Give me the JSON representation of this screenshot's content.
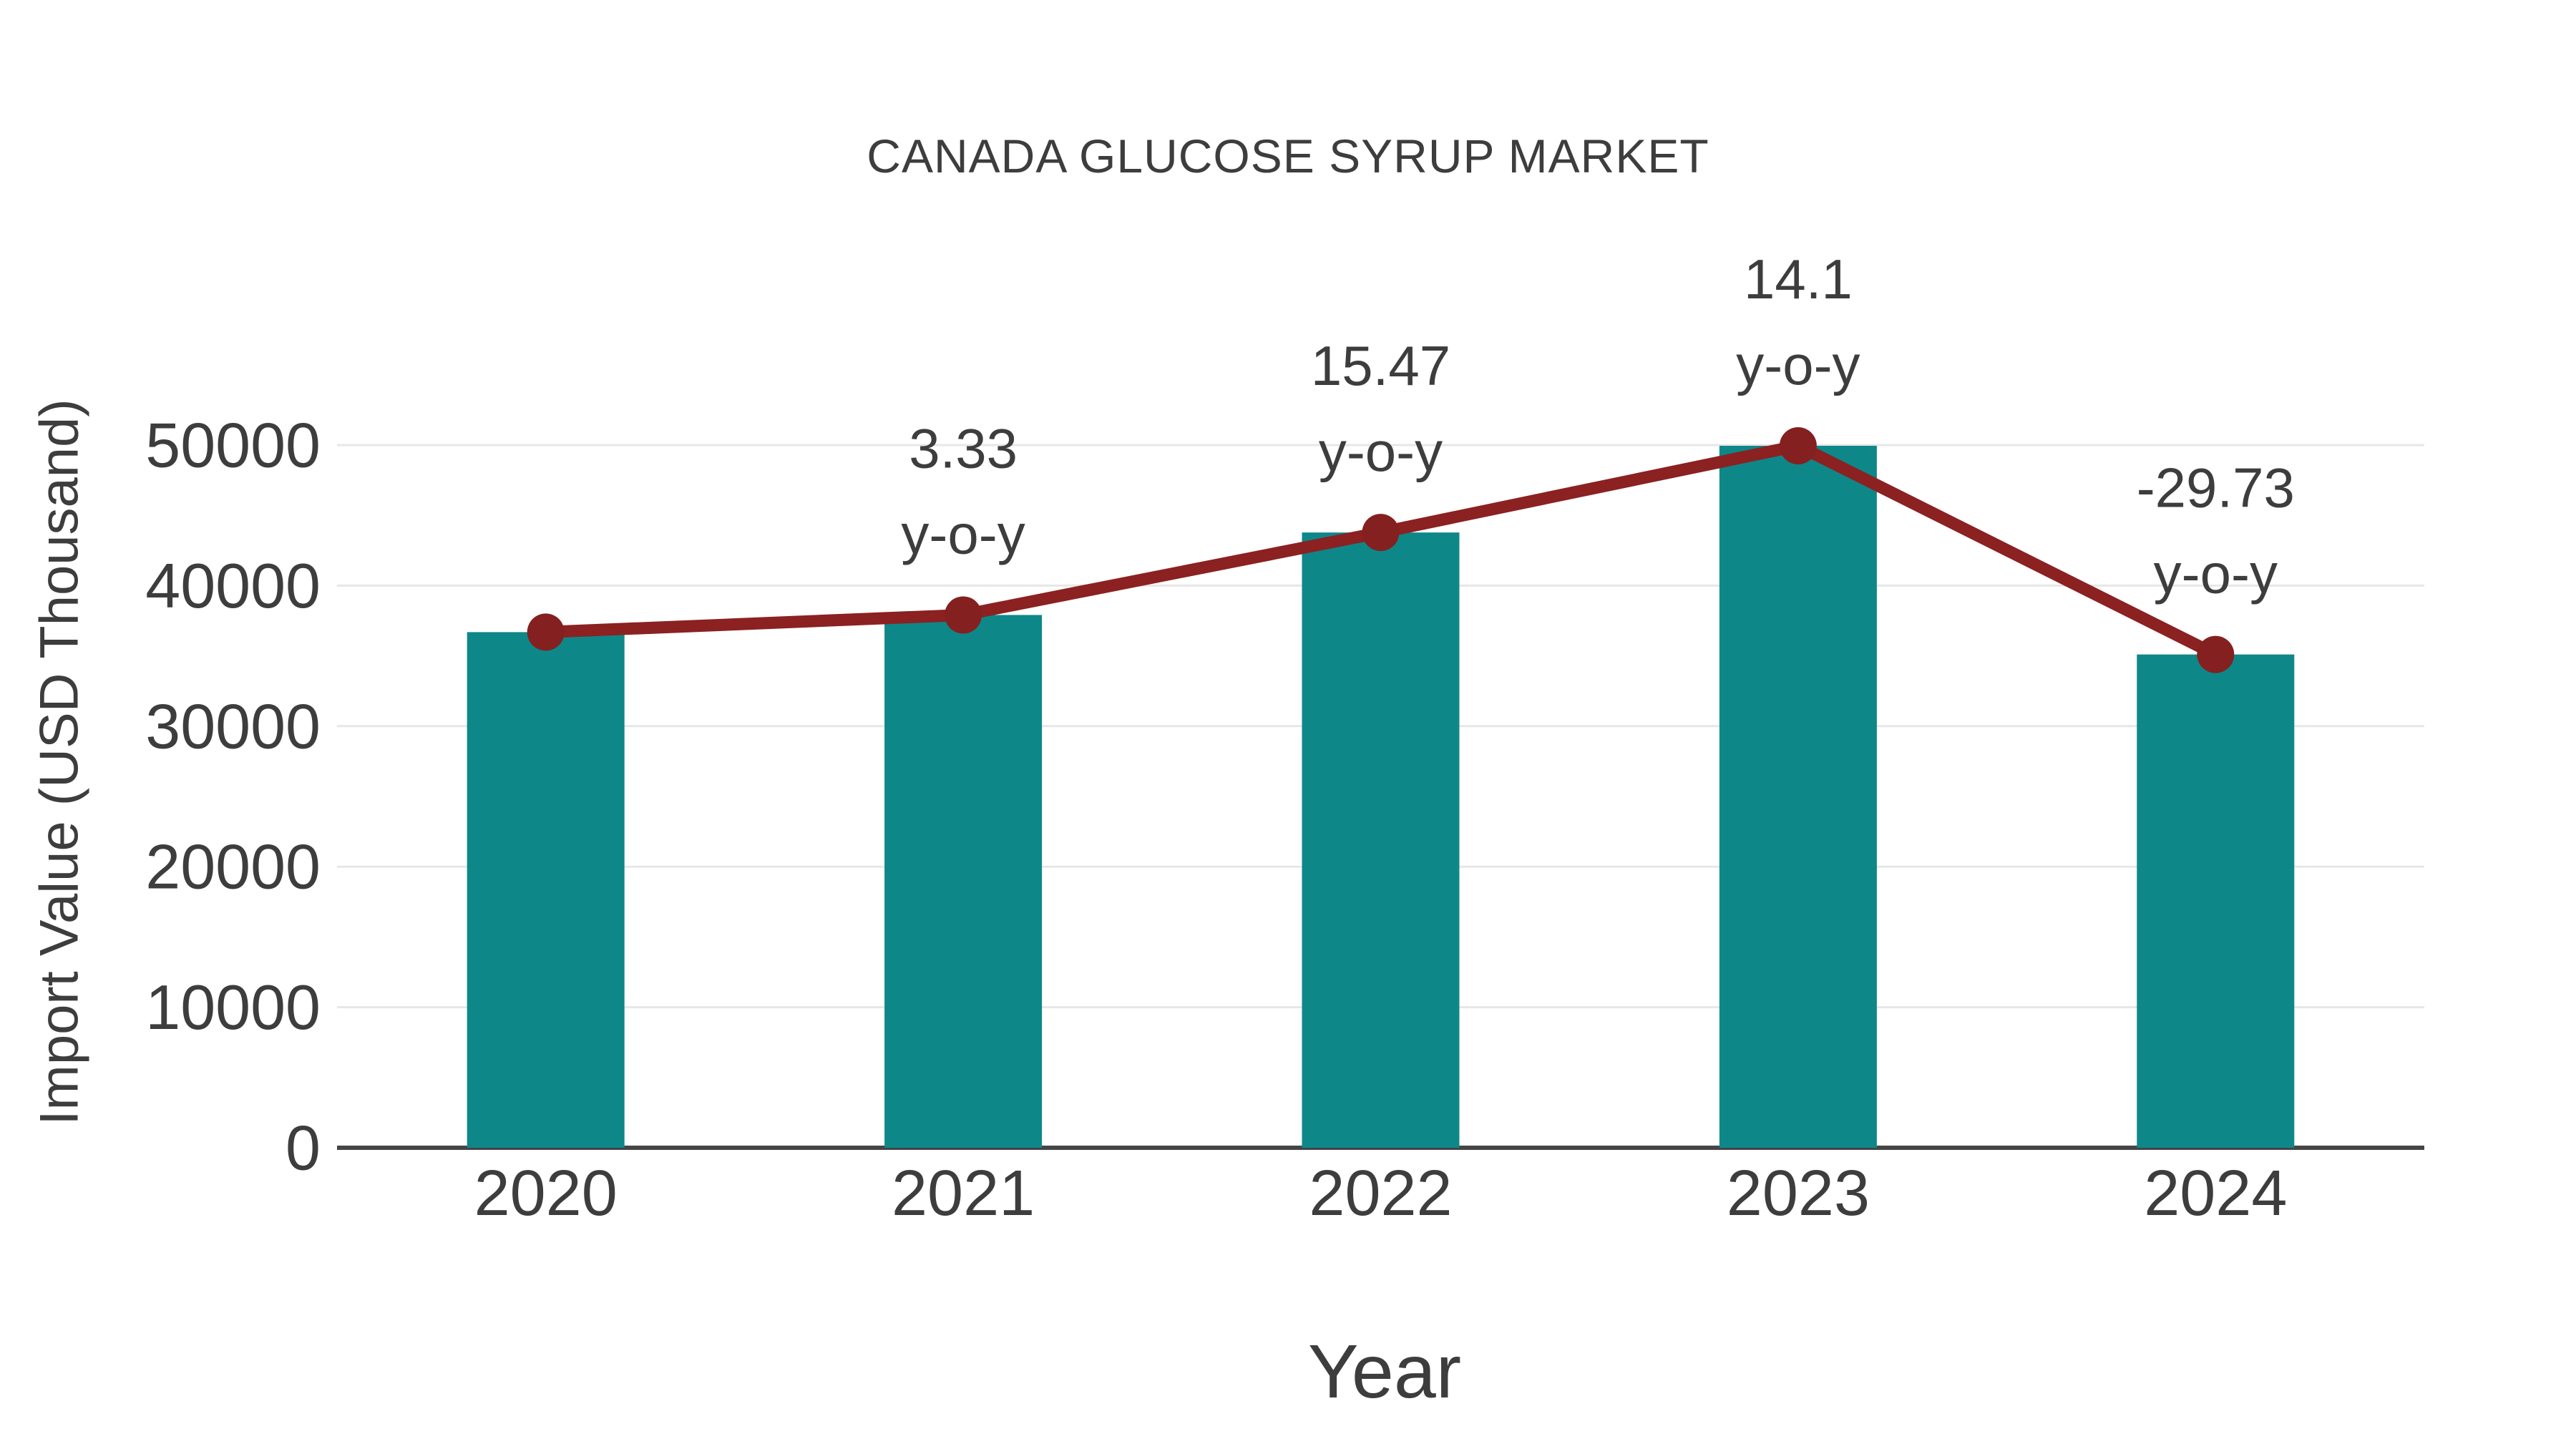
{
  "chart_data": {
    "type": "bar",
    "title": "CANADA GLUCOSE SYRUP MARKET",
    "xlabel": "Year",
    "ylabel": "Import Value (USD Thousand)",
    "categories": [
      "2020",
      "2021",
      "2022",
      "2023",
      "2024"
    ],
    "series": [
      {
        "name": "Import Value (USD Thousand)",
        "type": "bar",
        "values": [
          36690,
          37910,
          43780,
          49950,
          35100
        ]
      },
      {
        "name": "y-o-y change (%)",
        "type": "line",
        "values": [
          null,
          3.33,
          15.47,
          14.1,
          -29.73
        ],
        "markers_at_bar_tops": true
      }
    ],
    "annotations": [
      {
        "category": "2021",
        "value_text": "3.33",
        "unit_text": "y-o-y"
      },
      {
        "category": "2022",
        "value_text": "15.47",
        "unit_text": "y-o-y"
      },
      {
        "category": "2023",
        "value_text": "14.1",
        "unit_text": "y-o-y"
      },
      {
        "category": "2024",
        "value_text": "-29.73",
        "unit_text": "y-o-y"
      }
    ],
    "yticks": [
      0,
      10000,
      20000,
      30000,
      40000,
      50000
    ],
    "ylim": [
      0,
      50000
    ],
    "grid": "horizontal",
    "legend": "none",
    "style": {
      "bar_color": "#0E8789",
      "line_color": "#8B2121",
      "marker_color": "#84201F",
      "grid_color": "#E7E7E7",
      "axis_color": "#454545",
      "text_color": "#3D3D3D",
      "background": "#FFFFFF"
    }
  }
}
